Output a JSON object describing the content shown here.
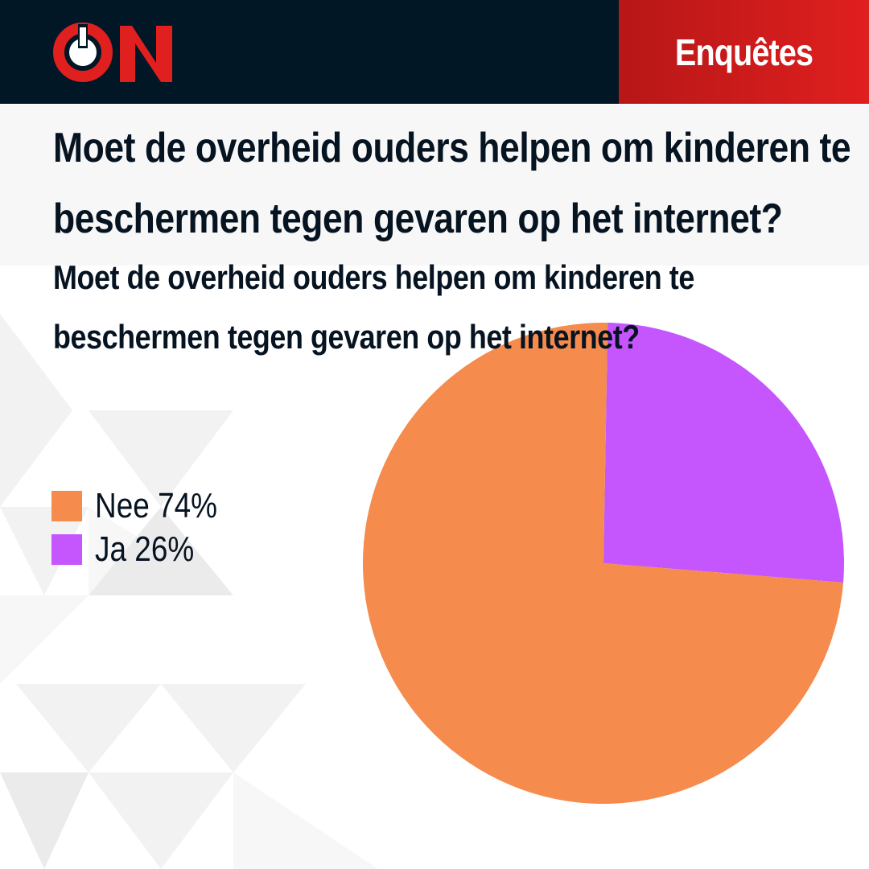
{
  "header": {
    "logo_text": "ON",
    "section_label": "Enquêtes"
  },
  "colors": {
    "header_bg": "#021726",
    "brand_red": "#e01f1f",
    "text": "#061321",
    "background": "#ffffff"
  },
  "chart_data": {
    "type": "pie",
    "title": "Moet de overheid ouders helpen om kinderen te beschermen tegen gevaren op het internet?",
    "subtitle": "Moet de overheid ouders helpen om kinderen te beschermen tegen gevaren op het internet?",
    "categories": [
      "Nee",
      "Ja"
    ],
    "values": [
      74,
      26
    ],
    "unit": "%",
    "colors": [
      "#f58b4c",
      "#c555fd"
    ],
    "legend_labels": [
      "Nee 74%",
      "Ja 26%"
    ],
    "legend_position": "left"
  }
}
